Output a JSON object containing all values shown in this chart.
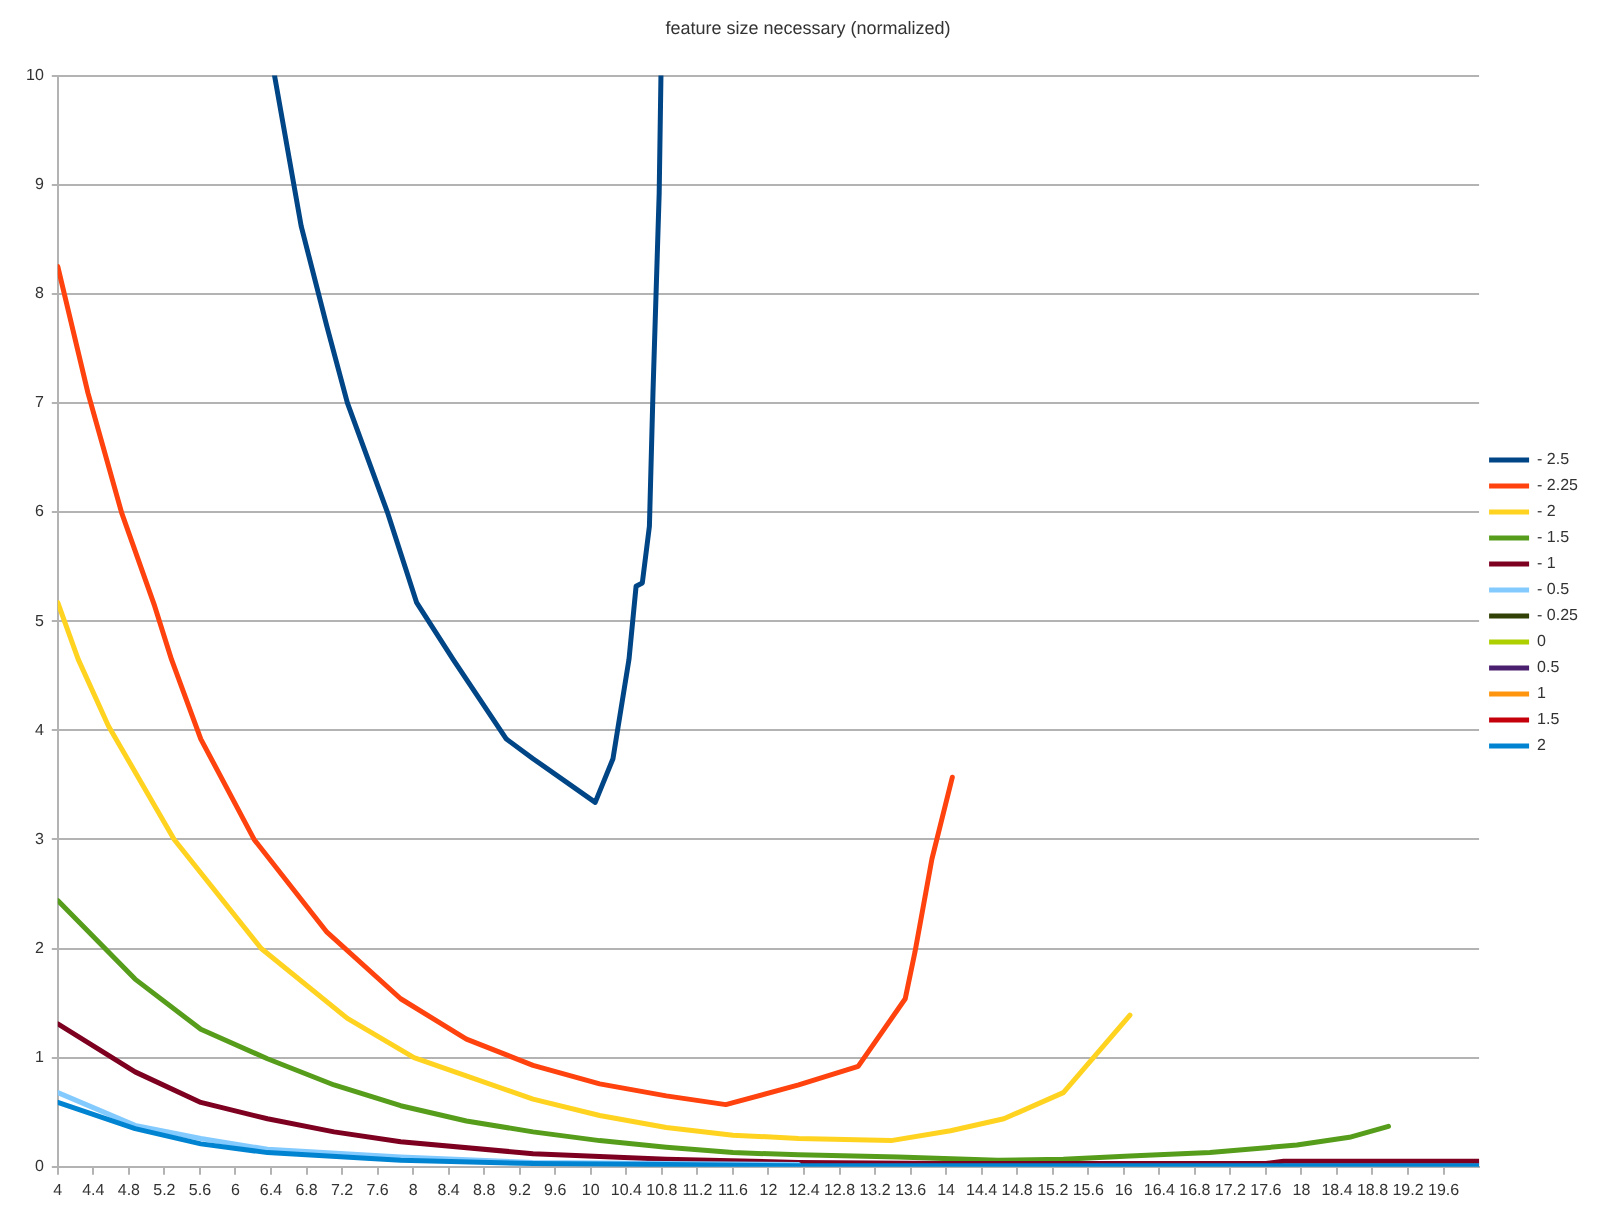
{
  "chart_data": {
    "type": "line",
    "title": "feature size necessary (normalized)",
    "xlim": [
      4,
      20
    ],
    "xticks": [
      4,
      4.4,
      4.8,
      5.2,
      5.6,
      6,
      6.4,
      6.8,
      7.2,
      7.6,
      8,
      8.4,
      8.8,
      9.2,
      9.6,
      10,
      10.4,
      10.8,
      11.2,
      11.6,
      12,
      12.4,
      12.8,
      13.2,
      13.6,
      14,
      14.4,
      14.8,
      15.2,
      15.6,
      16,
      16.4,
      16.8,
      17.2,
      17.6,
      18,
      18.4,
      18.8,
      19.2,
      19.6
    ],
    "ylim": [
      0,
      10
    ],
    "yticks": [
      0,
      1,
      2,
      3,
      4,
      5,
      6,
      7,
      8,
      9,
      10
    ],
    "grid": "y",
    "legend": "right",
    "marker": "none",
    "line_style": "solid",
    "series": [
      {
        "name": "- 2.5",
        "color": "#004586",
        "x": [
          6.44,
          6.74,
          7.03,
          7.26,
          7.71,
          8.04,
          8.45,
          9.05,
          9.35,
          10.05,
          10.25,
          10.43,
          10.51,
          10.58,
          10.66,
          10.7,
          10.77,
          10.79
        ],
        "values": [
          10,
          8.62,
          7.7,
          7.0,
          6.0,
          5.17,
          4.65,
          3.92,
          3.74,
          3.34,
          3.74,
          4.65,
          5.32,
          5.35,
          5.87,
          7.09,
          8.92,
          10
        ]
      },
      {
        "name": "- 2.25",
        "color": "#ff420e",
        "x": [
          4,
          4.34,
          4.72,
          5.09,
          5.28,
          5.61,
          6.21,
          7.03,
          7.86,
          8.6,
          9.35,
          10.1,
          10.85,
          11.52,
          12.34,
          13.01,
          13.54,
          13.65,
          13.84,
          14.07
        ],
        "values": [
          8.25,
          7.09,
          5.99,
          5.14,
          4.65,
          3.92,
          3.0,
          2.15,
          1.54,
          1.17,
          0.93,
          0.76,
          0.65,
          0.57,
          0.75,
          0.92,
          1.54,
          1.97,
          2.82,
          3.57
        ]
      },
      {
        "name": "- 2",
        "color": "#ffd320",
        "x": [
          4,
          4.23,
          4.57,
          5.31,
          6.29,
          7.26,
          8.01,
          9.35,
          10.1,
          10.85,
          11.6,
          12.34,
          13.38,
          14.05,
          14.65,
          15.32,
          16.07
        ],
        "values": [
          5.17,
          4.65,
          4.04,
          3.0,
          2.0,
          1.36,
          1.0,
          0.62,
          0.47,
          0.36,
          0.29,
          0.26,
          0.24,
          0.33,
          0.44,
          0.68,
          1.39
        ]
      },
      {
        "name": "- 1.5",
        "color": "#579d1c",
        "x": [
          4,
          4.87,
          5.61,
          6.36,
          7.11,
          7.86,
          8.6,
          9.35,
          10.1,
          10.85,
          11.6,
          12.34,
          13.46,
          14.58,
          15.32,
          16.07,
          16.97,
          17.95,
          18.54,
          18.98
        ],
        "values": [
          2.44,
          1.72,
          1.26,
          0.99,
          0.75,
          0.56,
          0.42,
          0.32,
          0.24,
          0.18,
          0.13,
          0.11,
          0.09,
          0.06,
          0.07,
          0.1,
          0.13,
          0.2,
          0.27,
          0.37
        ]
      },
      {
        "name": "- 1",
        "color": "#7e0021",
        "x": [
          4,
          4.87,
          5.61,
          6.36,
          7.11,
          7.86,
          9.35,
          10.85,
          12.34,
          14,
          16,
          17.6,
          17.8,
          20
        ],
        "values": [
          1.31,
          0.87,
          0.59,
          0.44,
          0.32,
          0.23,
          0.12,
          0.07,
          0.04,
          0.03,
          0.03,
          0.03,
          0.05,
          0.05
        ]
      },
      {
        "name": "- 0.5",
        "color": "#83caff",
        "x": [
          4,
          4.87,
          5.61,
          6.36,
          7.86,
          9.35,
          10.85,
          12.34
        ],
        "values": [
          0.68,
          0.38,
          0.26,
          0.16,
          0.09,
          0.04,
          0.03,
          0.02
        ]
      },
      {
        "name": "- 0.25",
        "color": "#314004"
      },
      {
        "name": "0",
        "color": "#aecf00"
      },
      {
        "name": "0.5",
        "color": "#4b1f6f"
      },
      {
        "name": "1",
        "color": "#ff950e"
      },
      {
        "name": "1.5",
        "color": "#c5000b"
      },
      {
        "name": "2",
        "color": "#0084d1",
        "x": [
          4,
          4.87,
          5.61,
          6.36,
          7.86,
          9.35,
          10.85,
          12.34,
          20
        ],
        "values": [
          0.59,
          0.35,
          0.21,
          0.13,
          0.06,
          0.03,
          0.02,
          0.01,
          0.01
        ]
      }
    ]
  }
}
